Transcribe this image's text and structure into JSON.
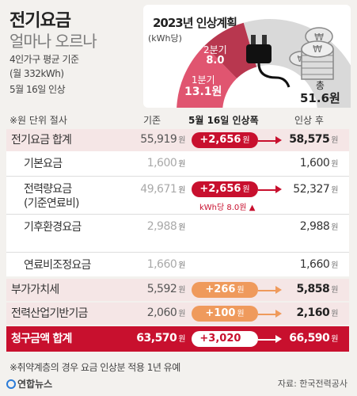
{
  "title": {
    "main": "전기요금",
    "sub": "얼마나 오르나"
  },
  "basis": {
    "line1": "4인가구 평균 기준",
    "line2": "(월 332kWh)",
    "line3": "5월 16일 인상"
  },
  "chart": {
    "title": "2023년 인상계획",
    "unit": "(kWh당)",
    "q1_label": "1분기",
    "q1_value": "13.1원",
    "q2_label": "2분기",
    "q2_value": "8.0",
    "total_label": "총",
    "total_value": "51.6원",
    "colors": {
      "q1": "#e05570",
      "q2": "#b8374f",
      "rest": "#d9d9d9"
    }
  },
  "chart_data": {
    "type": "pie",
    "title": "2023년 인상계획",
    "unit": "(kWh당)",
    "total": 51.6,
    "slices": [
      {
        "label": "1분기",
        "value": 13.1
      },
      {
        "label": "2분기",
        "value": 8.0
      }
    ]
  },
  "table": {
    "note": "※원 단위 절사",
    "col_old": "기존",
    "col_change": "5월 16일 인상폭",
    "col_new": "인상 후",
    "won": "원",
    "rows": [
      {
        "label": "전기요금 합계",
        "old": "55,919",
        "change": "+2,656",
        "new": "58,575"
      },
      {
        "label": "기본요금",
        "old": "1,600",
        "new": "1,600"
      },
      {
        "label": "전력량요금",
        "label2": "(기준연료비)",
        "old": "49,671",
        "change": "+2,656",
        "new": "52,327",
        "sub_note": "kWh당 8.0원"
      },
      {
        "label": "기후환경요금",
        "old": "2,988",
        "new": "2,988"
      },
      {
        "label": "연료비조정요금",
        "old": "1,660",
        "new": "1,660"
      },
      {
        "label": "부가가치세",
        "old": "5,592",
        "change": "+266",
        "new": "5,858"
      },
      {
        "label": "전력산업기반기금",
        "old": "2,060",
        "change": "+100",
        "new": "2,160"
      },
      {
        "label": "청구금액 합계",
        "old": "63,570",
        "change": "+3,020",
        "new": "66,590"
      }
    ]
  },
  "footnote": "※취약계층의 경우 요금 인상분 적용 1년 유예",
  "logo": "연합뉴스",
  "source": "자료: 한국전력공사"
}
